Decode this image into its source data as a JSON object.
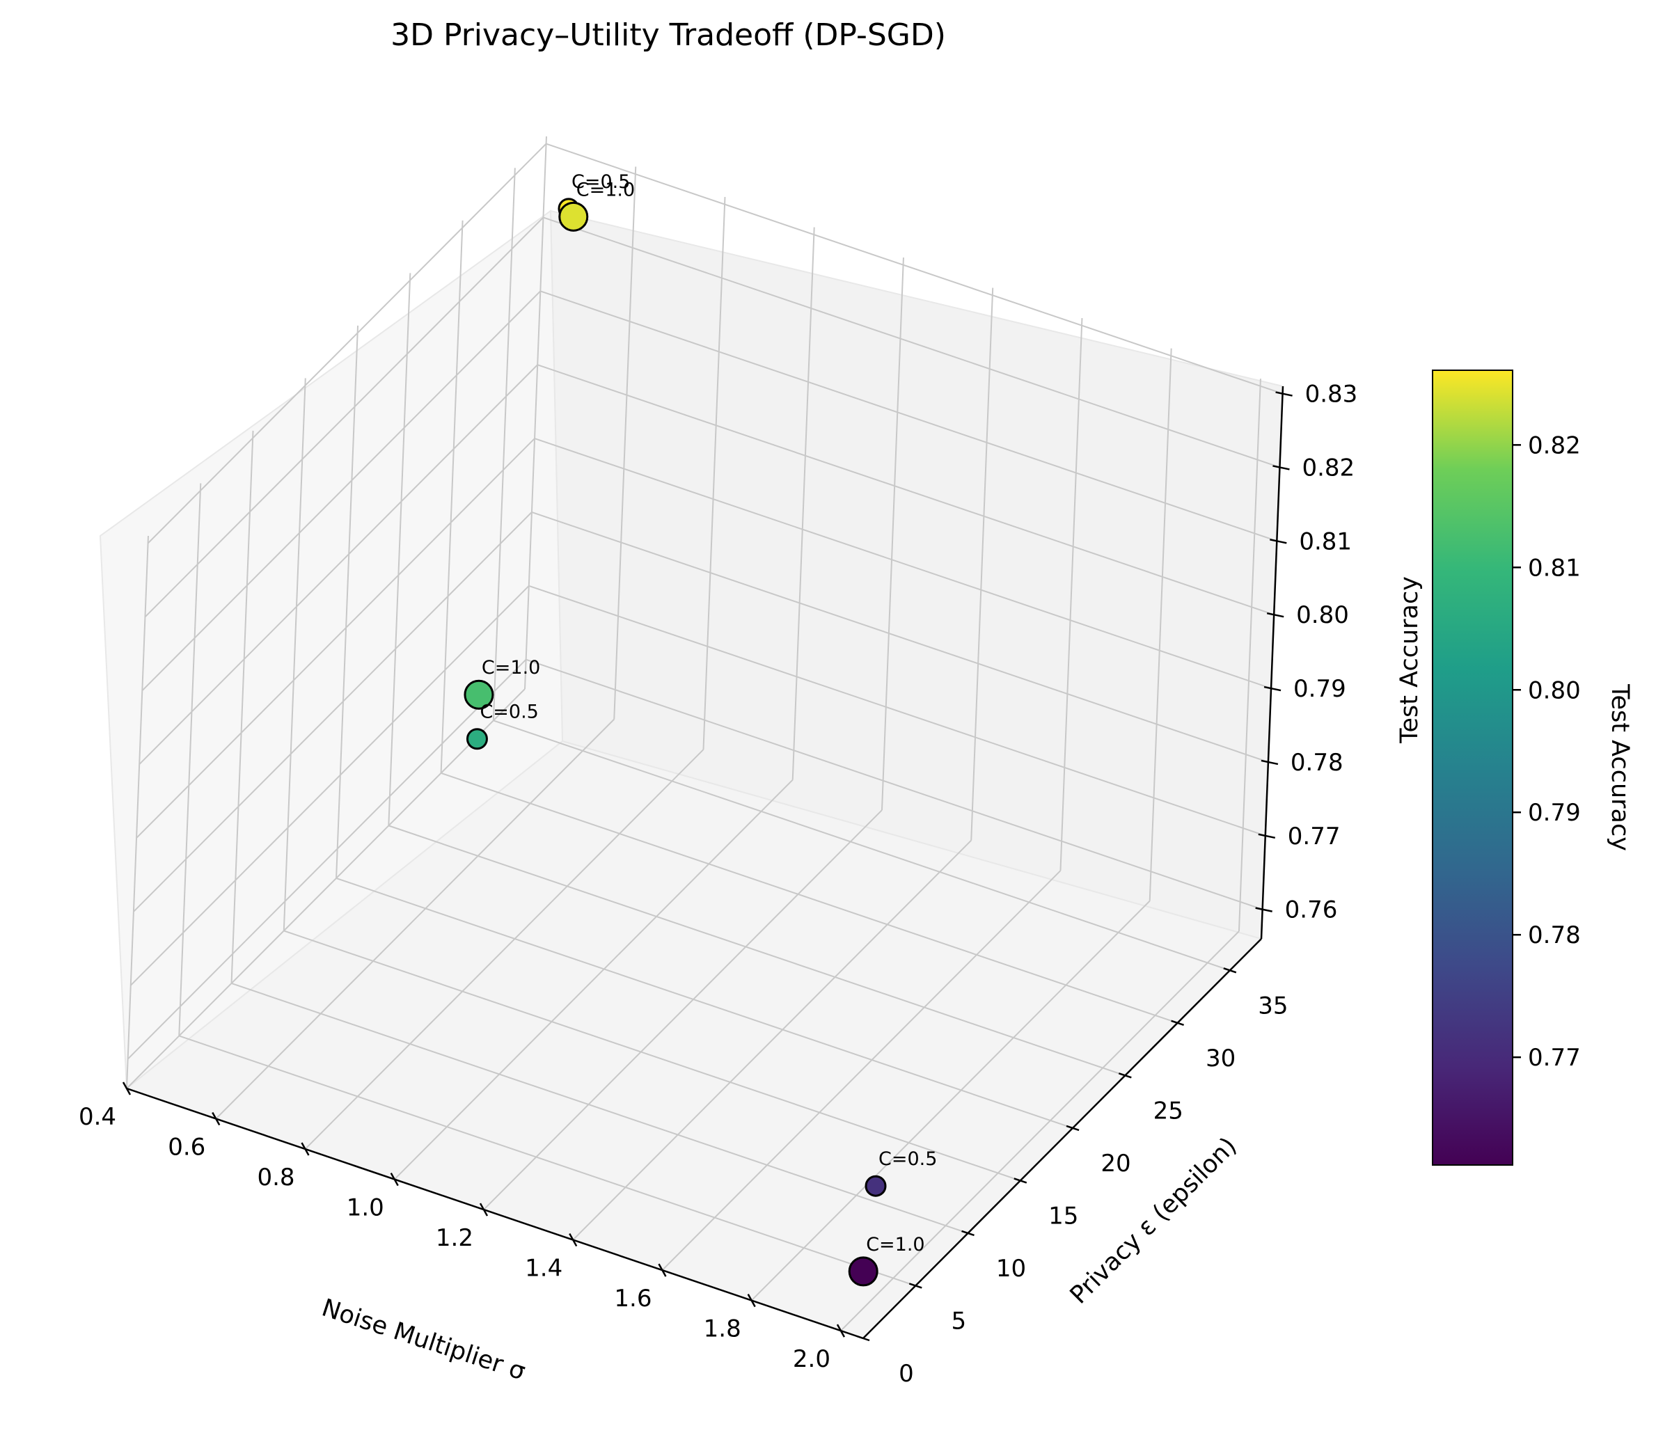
{
  "chart_data": {
    "type": "scatter",
    "projection": "3d",
    "title": "3D Privacy–Utility Tradeoff (DP-SGD)",
    "xlabel": "Noise Multiplier σ",
    "ylabel": "Privacy ε (epsilon)",
    "zlabel": "Test Accuracy",
    "xlim": [
      0.4,
      2.05
    ],
    "ylim": [
      0,
      38
    ],
    "zlim": [
      0.756,
      0.831
    ],
    "x_ticks": [
      "0.4",
      "0.6",
      "0.8",
      "1.0",
      "1.2",
      "1.4",
      "1.6",
      "1.8",
      "2.0"
    ],
    "y_ticks": [
      "0",
      "5",
      "10",
      "15",
      "20",
      "25",
      "30",
      "35"
    ],
    "z_ticks": [
      "0.76",
      "0.77",
      "0.78",
      "0.79",
      "0.80",
      "0.81",
      "0.82",
      "0.83"
    ],
    "grid": true,
    "colormap": "viridis",
    "points": [
      {
        "x": 0.5,
        "y": 36.0,
        "z": 0.8261,
        "label": "C=0.5",
        "size_class": "small"
      },
      {
        "x": 0.5,
        "y": 36.5,
        "z": 0.8243,
        "label": "C=1.0",
        "size_class": "large"
      },
      {
        "x": 1.0,
        "y": 6.5,
        "z": 0.8125,
        "label": "C=1.0",
        "size_class": "large"
      },
      {
        "x": 1.0,
        "y": 6.5,
        "z": 0.8065,
        "label": "C=0.5",
        "size_class": "small"
      },
      {
        "x": 2.0,
        "y": 2.9,
        "z": 0.7715,
        "label": "C=0.5",
        "size_class": "small"
      },
      {
        "x": 2.0,
        "y": 2.0,
        "z": 0.7612,
        "label": "C=1.0",
        "size_class": "large"
      }
    ],
    "colorbar": {
      "label": "Test Accuracy",
      "range": [
        0.7612,
        0.8261
      ],
      "ticks": [
        "0.77",
        "0.78",
        "0.79",
        "0.80",
        "0.81",
        "0.82"
      ],
      "tick_values": [
        0.77,
        0.78,
        0.79,
        0.8,
        0.81,
        0.82
      ]
    }
  }
}
